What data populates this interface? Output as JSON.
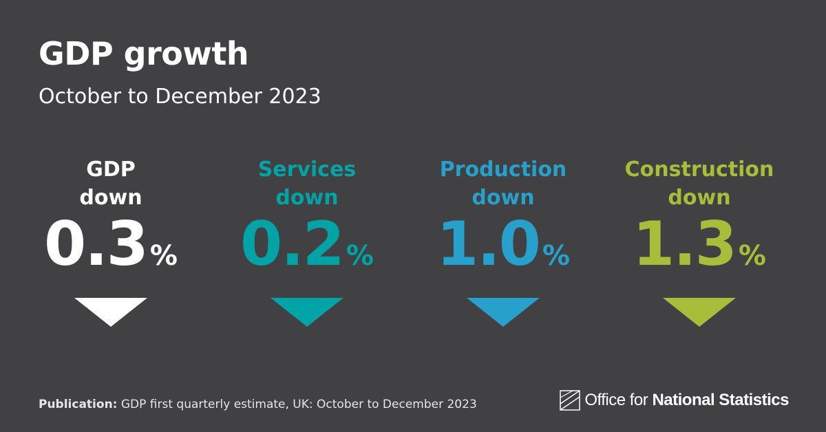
{
  "title": "GDP growth",
  "subtitle": "October to December 2023",
  "stats": [
    {
      "line1": "GDP",
      "line2": "down",
      "value": "0.3",
      "unit": "%",
      "color": "#ffffff"
    },
    {
      "line1": "Services",
      "line2": "down",
      "value": "0.2",
      "unit": "%",
      "color": "#00a3a6"
    },
    {
      "line1": "Production",
      "line2": "down",
      "value": "1.0",
      "unit": "%",
      "color": "#27a0cc"
    },
    {
      "line1": "Construction",
      "line2": "down",
      "value": "1.3",
      "unit": "%",
      "color": "#a8bd3a"
    }
  ],
  "footer": {
    "publication_label": "Publication:",
    "publication_text": " GDP first quarterly estimate, UK: October to December 2023"
  },
  "logo": {
    "text_light": "Office for ",
    "text_bold": "National Statistics",
    "icon": "ons-logo-icon"
  },
  "colors": {
    "background": "#414042"
  }
}
